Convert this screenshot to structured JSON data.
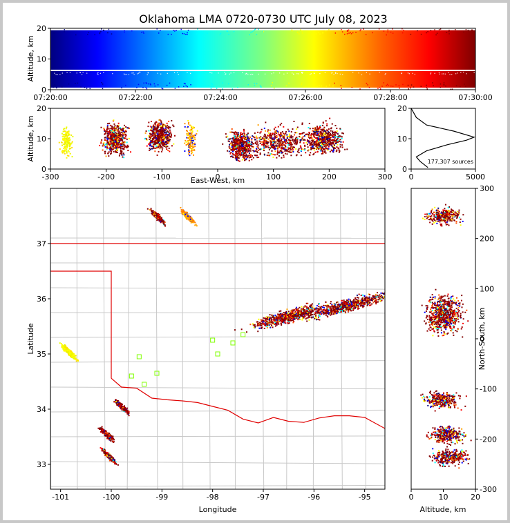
{
  "chart_data": [
    {
      "id": "time-altitude",
      "type": "scatter",
      "title": "Oklahoma LMA 0720-0730 UTC July 08, 2023",
      "xlabel": "",
      "ylabel": "Altitude, km",
      "x_tick_labels": [
        "07:20:00",
        "07:22:00",
        "07:24:00",
        "07:26:00",
        "07:28:00",
        "07:30:00"
      ],
      "xlim": [
        "07:20:00",
        "07:30:00"
      ],
      "ylim": [
        0,
        20
      ],
      "y_ticks": [
        0,
        10,
        20
      ],
      "colormap": "jet",
      "colors": [
        "#00007f",
        "#0000ff",
        "#00ffff",
        "#ffff00",
        "#ff0000",
        "#7f0000"
      ]
    },
    {
      "id": "ew-altitude",
      "type": "scatter",
      "xlabel": "East-West, km",
      "ylabel": "Altitude, km",
      "xlim": [
        -300,
        300
      ],
      "ylim": [
        0,
        20
      ],
      "x_ticks": [
        -300,
        -200,
        -100,
        0,
        100,
        200,
        300
      ],
      "y_ticks": [
        0,
        10,
        20
      ],
      "clusters": [
        {
          "x": -272,
          "alt": 9,
          "color": "yellow"
        },
        {
          "x": -185,
          "alt": 10,
          "color": "darkred"
        },
        {
          "x": -105,
          "alt": 11,
          "color": "darkred"
        },
        {
          "x": -50,
          "alt": 10,
          "color": "orange"
        },
        {
          "x": 40,
          "alt": 8,
          "color": "darkred"
        },
        {
          "x": 110,
          "alt": 9,
          "color": "darkred"
        },
        {
          "x": 190,
          "alt": 10,
          "color": "darkred"
        }
      ]
    },
    {
      "id": "altitude-histogram",
      "type": "line",
      "xlim": [
        0,
        5000
      ],
      "ylim": [
        0,
        20
      ],
      "x_ticks": [
        0,
        5000
      ],
      "y_ticks": [
        0,
        10,
        20
      ],
      "annotation": "177,307 sources",
      "points": [
        {
          "count": 1300,
          "alt": 0.5
        },
        {
          "count": 700,
          "alt": 2.5
        },
        {
          "count": 400,
          "alt": 4
        },
        {
          "count": 1200,
          "alt": 6
        },
        {
          "count": 2800,
          "alt": 8
        },
        {
          "count": 4300,
          "alt": 9.5
        },
        {
          "count": 4900,
          "alt": 10.5
        },
        {
          "count": 3300,
          "alt": 12.5
        },
        {
          "count": 1200,
          "alt": 14.5
        },
        {
          "count": 400,
          "alt": 17
        },
        {
          "count": 0,
          "alt": 20
        }
      ]
    },
    {
      "id": "plan-view",
      "type": "scatter",
      "xlabel": "Longitude",
      "ylabel": "Latitude",
      "xlim": [
        -101.2,
        -94.6
      ],
      "ylim": [
        32.55,
        38.0
      ],
      "x_ticks": [
        -101,
        -100,
        -99,
        -98,
        -97,
        -96,
        -95
      ],
      "y_ticks": [
        33,
        34,
        35,
        36,
        37
      ],
      "clusters": [
        {
          "lon": -99.8,
          "lat": 34.05,
          "color": "darkred"
        },
        {
          "lon": -100.1,
          "lat": 33.55,
          "color": "darkred"
        },
        {
          "lon": -100.05,
          "lat": 33.15,
          "color": "darkred"
        },
        {
          "lon": -99.1,
          "lat": 37.5,
          "color": "darkred"
        },
        {
          "lon": -98.5,
          "lat": 37.5,
          "color": "orange"
        },
        {
          "lon": -100.85,
          "lat": 35.05,
          "color": "yellow"
        },
        {
          "lon": -96.5,
          "lat": 35.7,
          "color": "darkred"
        },
        {
          "lon": -95.3,
          "lat": 35.9,
          "color": "darkred"
        }
      ]
    },
    {
      "id": "ns-altitude",
      "type": "scatter",
      "xlabel": "Altitude, km",
      "ylabel": "North-South, km",
      "xlim": [
        0,
        20
      ],
      "ylim": [
        -300,
        300
      ],
      "x_ticks": [
        0,
        10,
        20
      ],
      "y_ticks": [
        -300,
        -200,
        -100,
        0,
        100,
        200,
        300
      ],
      "clusters": [
        {
          "alt": 10,
          "y": 245,
          "color": "darkred"
        },
        {
          "alt": 10,
          "y": 50,
          "color": "darkred"
        },
        {
          "alt": 9,
          "y": -120,
          "color": "darkred"
        },
        {
          "alt": 11,
          "y": -190,
          "color": "darkred"
        },
        {
          "alt": 12,
          "y": -235,
          "color": "darkred"
        }
      ]
    }
  ]
}
